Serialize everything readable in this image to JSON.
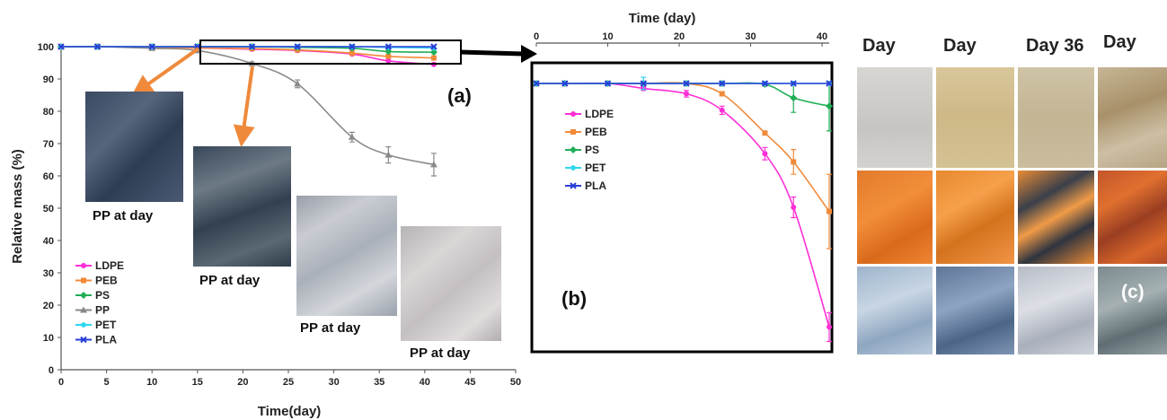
{
  "colors": {
    "LDPE": "#ff2fd6",
    "PEB": "#f08a3a",
    "PS": "#1fae55",
    "PP": "#8a8a8a",
    "PET": "#2fd6f0",
    "PLA": "#2a3fd6",
    "arrow": "#ef8a3b",
    "frame": "#000000"
  },
  "chart_data": [
    {
      "id": "a",
      "type": "line",
      "panel_label": "(a)",
      "xlabel": "Time(day)",
      "ylabel": "Relative mass (%)",
      "xlim": [
        0,
        50
      ],
      "ylim": [
        0,
        100
      ],
      "xticks": [
        "0",
        "5",
        "10",
        "15",
        "20",
        "25",
        "30",
        "35",
        "40",
        "45",
        "50"
      ],
      "yticks": [
        "0",
        "10",
        "20",
        "30",
        "40",
        "50",
        "60",
        "70",
        "80",
        "90",
        "100"
      ],
      "legend": [
        "LDPE",
        "PEB",
        "PS",
        "PP",
        "PET",
        "PLA"
      ],
      "legend_position": "bottom-left",
      "series": [
        {
          "name": "LDPE",
          "x": [
            0,
            4,
            10,
            15,
            21,
            26,
            32,
            36,
            41
          ],
          "y": [
            100,
            100,
            99.8,
            99.6,
            99.2,
            98.8,
            97.7,
            95.6,
            94.5
          ],
          "marker": "circle"
        },
        {
          "name": "PEB",
          "x": [
            0,
            4,
            10,
            15,
            21,
            26,
            32,
            36,
            41
          ],
          "y": [
            100,
            100,
            99.8,
            99.6,
            99.4,
            99,
            98,
            97,
            96.5
          ],
          "marker": "square"
        },
        {
          "name": "PS",
          "x": [
            0,
            4,
            10,
            15,
            21,
            26,
            32,
            36,
            41
          ],
          "y": [
            100,
            100,
            100,
            100,
            100,
            99.8,
            99.5,
            98.5,
            98.3
          ],
          "marker": "diamond"
        },
        {
          "name": "PP",
          "x": [
            0,
            4,
            10,
            15,
            21,
            26,
            32,
            36,
            41
          ],
          "y": [
            100,
            100,
            99.5,
            98.8,
            94.8,
            88.5,
            72,
            66.5,
            63.5
          ],
          "err": [
            0,
            0,
            0,
            0,
            0.5,
            1.2,
            1.5,
            2.5,
            3.5
          ],
          "marker": "triangle"
        },
        {
          "name": "PET",
          "x": [
            0,
            4,
            10,
            15,
            21,
            26,
            32,
            36,
            41
          ],
          "y": [
            100,
            100,
            100,
            100,
            100,
            100,
            100,
            99.8,
            99.6
          ],
          "marker": "star"
        },
        {
          "name": "PLA",
          "x": [
            0,
            4,
            10,
            15,
            21,
            26,
            32,
            36,
            41
          ],
          "y": [
            100,
            100,
            100,
            100,
            100,
            100,
            100,
            100,
            100
          ],
          "marker": "x"
        }
      ],
      "inset_photo_captions": [
        "PP at day",
        "PP at day",
        "PP at day",
        "PP at day"
      ]
    },
    {
      "id": "b",
      "type": "line",
      "panel_label": "(b)",
      "xlabel": "Time (day)",
      "xlim": [
        0,
        41
      ],
      "ylim": [
        30,
        100
      ],
      "xticks": [
        "0",
        "10",
        "20",
        "30",
        "40"
      ],
      "legend": [
        "LDPE",
        "PEB",
        "PS",
        "PET",
        "PLA"
      ],
      "legend_position": "upper-left",
      "series": [
        {
          "name": "LDPE",
          "x": [
            0,
            4,
            10,
            15,
            21,
            26,
            32,
            36,
            41
          ],
          "y": [
            95,
            95,
            95,
            93.8,
            92.5,
            88.5,
            78,
            65,
            36
          ],
          "err": [
            0,
            0,
            0,
            0.5,
            0.8,
            1,
            1.5,
            2.5,
            3.5
          ],
          "marker": "circle"
        },
        {
          "name": "PEB",
          "x": [
            0,
            4,
            10,
            15,
            21,
            26,
            32,
            36,
            41
          ],
          "y": [
            95,
            95,
            95,
            95,
            95,
            92.5,
            83,
            76,
            64
          ],
          "err": [
            0,
            0,
            0,
            0,
            0.5,
            0.5,
            0,
            3,
            9
          ],
          "marker": "square"
        },
        {
          "name": "PS",
          "x": [
            0,
            4,
            10,
            15,
            21,
            26,
            32,
            36,
            41
          ],
          "y": [
            95,
            95,
            95,
            95,
            95,
            95,
            94.8,
            91.5,
            89.5
          ],
          "err": [
            0,
            0,
            0,
            0,
            0,
            0,
            0,
            3.5,
            6
          ],
          "marker": "diamond"
        },
        {
          "name": "PET",
          "x": [
            0,
            4,
            10,
            15,
            21,
            26,
            32,
            36,
            41
          ],
          "y": [
            95,
            95,
            95,
            95,
            95,
            95,
            95,
            95,
            95
          ],
          "err": [
            0,
            0,
            0,
            1.5,
            0,
            0,
            0,
            0,
            0
          ],
          "marker": "star"
        },
        {
          "name": "PLA",
          "x": [
            0,
            4,
            10,
            15,
            21,
            26,
            32,
            36,
            41
          ],
          "y": [
            95,
            95,
            95,
            95,
            95,
            95,
            95,
            95,
            95
          ],
          "marker": "x"
        }
      ]
    }
  ],
  "panel_c": {
    "label": "(c)",
    "headers": [
      "Day",
      "Day",
      "Day 36",
      "Day"
    ]
  }
}
